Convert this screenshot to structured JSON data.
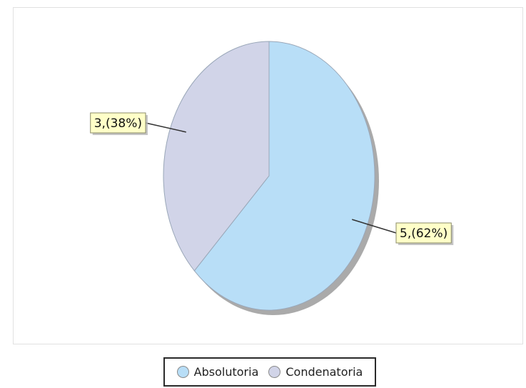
{
  "chart_data": {
    "type": "pie",
    "title": "",
    "categories": [
      "Absolutoria",
      "Condenatoria"
    ],
    "values": [
      5,
      3
    ],
    "percentages": [
      62,
      38
    ],
    "data_labels": [
      "5,(62%)",
      "3,(38%)"
    ],
    "colors": [
      "#b8def7",
      "#d1d4e8"
    ],
    "start_angle": "12 o'clock",
    "direction": "clockwise",
    "legend_position": "bottom-center"
  },
  "legend": {
    "items": [
      {
        "label": "Absolutoria",
        "color": "#b8def7"
      },
      {
        "label": "Condenatoria",
        "color": "#d1d4e8"
      }
    ]
  }
}
